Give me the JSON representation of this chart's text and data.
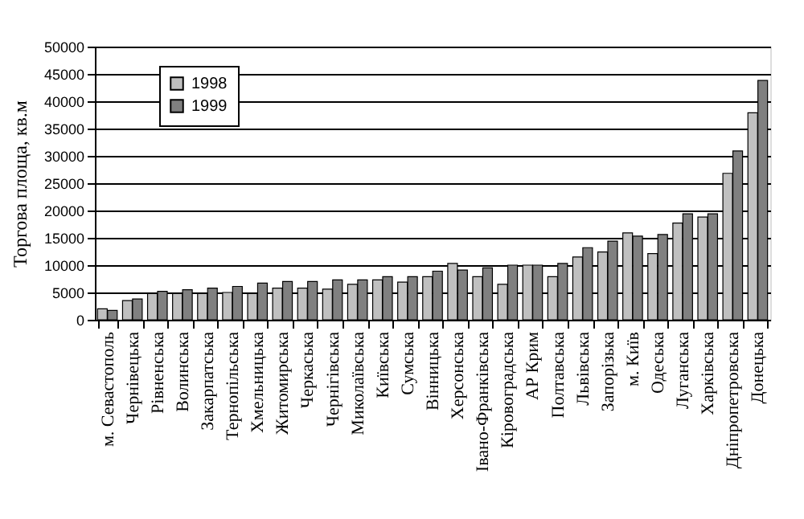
{
  "chart_data": {
    "type": "bar",
    "ylabel": "Торгова площа, кв.м",
    "categories": [
      "м. Севастополь",
      "Чернівецька",
      "Рівненська",
      "Волинська",
      "Закарпатська",
      "Тернопільська",
      "Хмельницька",
      "Житомирська",
      "Черкаська",
      "Чернігівська",
      "Миколаївська",
      "Київська",
      "Сумська",
      "Вінницька",
      "Херсонська",
      "Івано-Франківська",
      "Кіровоградська",
      "АР Крим",
      "Полтавська",
      "Львівська",
      "Запорізька",
      "м. Київ",
      "Одеська",
      "Луганська",
      "Харківська",
      "Дніпропетровська",
      "Донецька"
    ],
    "series": [
      {
        "name": "1998",
        "color": "#c0c0c0",
        "values": [
          2000,
          3500,
          4800,
          4800,
          4800,
          5000,
          4800,
          5800,
          5800,
          5600,
          6500,
          7300,
          6900,
          7900,
          10300,
          7900,
          6500,
          10000,
          7900,
          11500,
          12400,
          15900,
          12100,
          17700,
          18800,
          26800,
          37900
        ]
      },
      {
        "name": "1999",
        "color": "#808080",
        "values": [
          1700,
          3800,
          5200,
          5500,
          5800,
          6100,
          6700,
          7000,
          7000,
          7300,
          7300,
          7900,
          7900,
          8900,
          9100,
          9500,
          10000,
          10000,
          10300,
          13200,
          14400,
          15300,
          15600,
          19400,
          19400,
          30900,
          43800
        ]
      }
    ],
    "ylim": [
      0,
      50000
    ],
    "yticks": [
      0,
      5000,
      10000,
      15000,
      20000,
      25000,
      30000,
      35000,
      40000,
      45000,
      50000
    ],
    "grid": "y",
    "legend": "top left"
  }
}
